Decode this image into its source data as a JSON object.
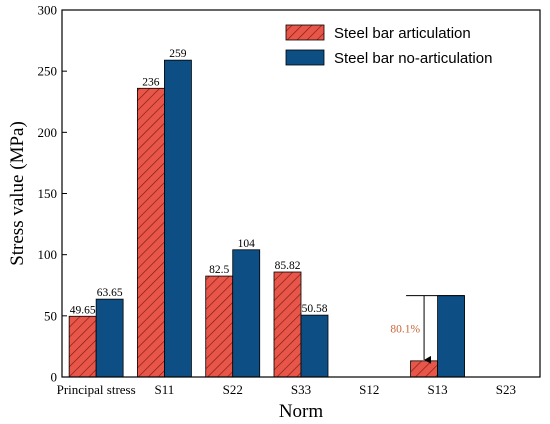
{
  "chart_data": {
    "type": "bar",
    "categories": [
      "Principal stress",
      "S11",
      "S22",
      "S33",
      "S12",
      "S13",
      "S23"
    ],
    "series": [
      {
        "name": "Steel bar articulation",
        "values": [
          49.65,
          236,
          82.5,
          85.82,
          0,
          13.2,
          0
        ],
        "labels": [
          "49.65",
          "236",
          "82.5",
          "85.82",
          "",
          "",
          ""
        ],
        "color": "#e8564a",
        "pattern": "diagonal-hatch"
      },
      {
        "name": "Steel bar no-articulation",
        "values": [
          63.65,
          259,
          104,
          50.58,
          0,
          66.5,
          0
        ],
        "labels": [
          "63.65",
          "259",
          "104",
          "50.58",
          "",
          "",
          ""
        ],
        "color": "#0d4f85",
        "pattern": "solid"
      }
    ],
    "xlabel": "Norm",
    "ylabel": "Stress value (MPa)",
    "ylim": [
      0,
      300
    ],
    "yticks": [
      0,
      50,
      100,
      150,
      200,
      250,
      300
    ],
    "grid": false,
    "legend_position": "top-right",
    "annotation": {
      "text": "80.1%",
      "category": "S13",
      "from_value": 66.5,
      "to_value": 13.2,
      "color": "#c8653a"
    }
  }
}
